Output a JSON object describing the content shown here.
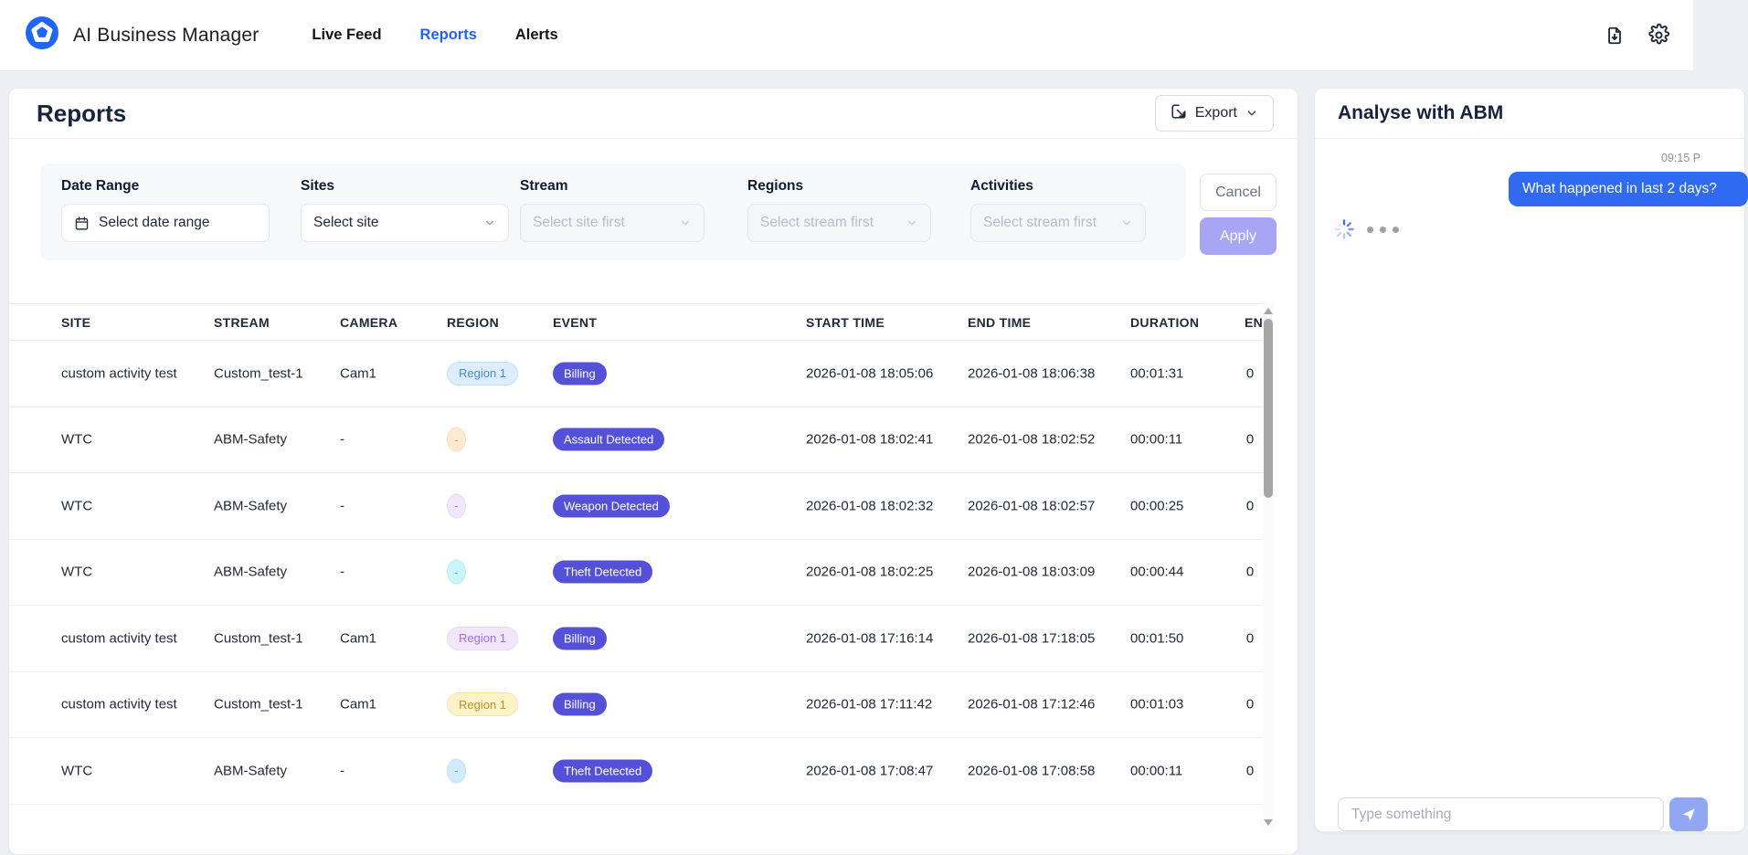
{
  "navbar": {
    "brand": "AI Business Manager",
    "items": [
      {
        "label": "Live Feed",
        "active": false
      },
      {
        "label": "Reports",
        "active": true
      },
      {
        "label": "Alerts",
        "active": false
      }
    ],
    "icons": [
      "file-download",
      "settings"
    ]
  },
  "reports": {
    "title": "Reports",
    "export_label": "Export",
    "cancel_label": "Cancel",
    "apply_label": "Apply",
    "filters": [
      {
        "label": "Date Range",
        "placeholder": "Select date range",
        "disabled": false,
        "icon": "calendar"
      },
      {
        "label": "Sites",
        "placeholder": "Select site",
        "disabled": false,
        "icon": "chevron"
      },
      {
        "label": "Stream",
        "placeholder": "Select site first",
        "disabled": true,
        "icon": "chevron"
      },
      {
        "label": "Regions",
        "placeholder": "Select stream first",
        "disabled": true,
        "icon": "chevron"
      },
      {
        "label": "Activities",
        "placeholder": "Select stream first",
        "disabled": true,
        "icon": "chevron"
      }
    ],
    "table": {
      "columns": [
        "SITE",
        "STREAM",
        "CAMERA",
        "REGION",
        "EVENT",
        "START TIME",
        "END TIME",
        "DURATION",
        "EN"
      ],
      "rows": [
        {
          "site": "custom activity test",
          "stream": "Custom_test-1",
          "camera": "Cam1",
          "region": {
            "label": "Region 1",
            "variant": "blue",
            "shape": "pill"
          },
          "event": "Billing",
          "start": "2026-01-08 18:05:06",
          "end": "2026-01-08 18:06:38",
          "duration": "00:01:31",
          "count": "0"
        },
        {
          "site": "WTC",
          "stream": "ABM-Safety",
          "camera": "-",
          "region": {
            "label": "-",
            "variant": "orange",
            "shape": "dot"
          },
          "event": "Assault Detected",
          "start": "2026-01-08 18:02:41",
          "end": "2026-01-08 18:02:52",
          "duration": "00:00:11",
          "count": "0"
        },
        {
          "site": "WTC",
          "stream": "ABM-Safety",
          "camera": "-",
          "region": {
            "label": "-",
            "variant": "lavender",
            "shape": "dot"
          },
          "event": "Weapon Detected",
          "start": "2026-01-08 18:02:32",
          "end": "2026-01-08 18:02:57",
          "duration": "00:00:25",
          "count": "0"
        },
        {
          "site": "WTC",
          "stream": "ABM-Safety",
          "camera": "-",
          "region": {
            "label": "-",
            "variant": "cyan",
            "shape": "dot"
          },
          "event": "Theft Detected",
          "start": "2026-01-08 18:02:25",
          "end": "2026-01-08 18:03:09",
          "duration": "00:00:44",
          "count": "0"
        },
        {
          "site": "custom activity test",
          "stream": "Custom_test-1",
          "camera": "Cam1",
          "region": {
            "label": "Region 1",
            "variant": "lavender",
            "shape": "pill"
          },
          "event": "Billing",
          "start": "2026-01-08 17:16:14",
          "end": "2026-01-08 17:18:05",
          "duration": "00:01:50",
          "count": "0"
        },
        {
          "site": "custom activity test",
          "stream": "Custom_test-1",
          "camera": "Cam1",
          "region": {
            "label": "Region 1",
            "variant": "yellow",
            "shape": "pill"
          },
          "event": "Billing",
          "start": "2026-01-08 17:11:42",
          "end": "2026-01-08 17:12:46",
          "duration": "00:01:03",
          "count": "0"
        },
        {
          "site": "WTC",
          "stream": "ABM-Safety",
          "camera": "-",
          "region": {
            "label": "-",
            "variant": "lightblue",
            "shape": "dot"
          },
          "event": "Theft Detected",
          "start": "2026-01-08 17:08:47",
          "end": "2026-01-08 17:08:58",
          "duration": "00:00:11",
          "count": "0"
        }
      ]
    }
  },
  "chat": {
    "title": "Analyse with ABM",
    "timestamp": "09:15 P",
    "user_message": "What happened in last 2 days?",
    "input_placeholder": "Type something"
  },
  "colors": {
    "accent": "#2563eb",
    "event_badge": "#5451d8",
    "apply_button": "#a8a6f4",
    "chat_bubble": "#2f6af0",
    "send_button": "#92a7f3"
  }
}
